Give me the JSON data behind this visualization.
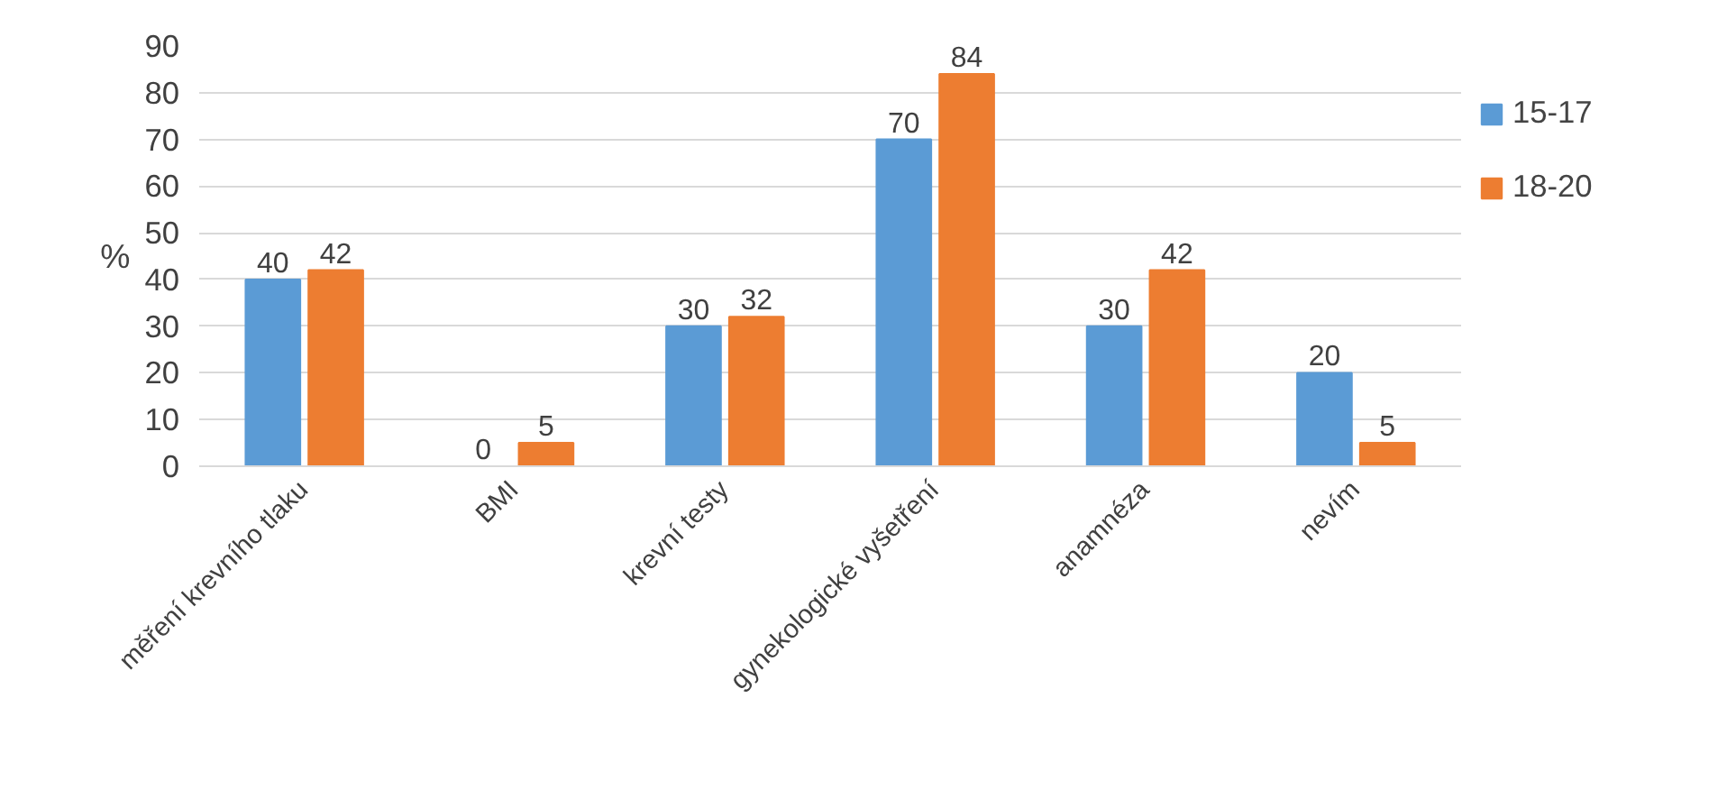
{
  "chart_data": {
    "type": "bar",
    "ylabel": "%",
    "categories": [
      "měření krevního tlaku",
      "BMI",
      "krevní testy",
      "gynekologické vyšetření",
      "anamnéza",
      "nevím"
    ],
    "series": [
      {
        "name": "15-17",
        "color": "#5b9bd5",
        "values": [
          40,
          0,
          30,
          70,
          30,
          20
        ]
      },
      {
        "name": "18-20",
        "color": "#ed7d31",
        "values": [
          42,
          5,
          32,
          84,
          42,
          5
        ]
      }
    ],
    "ylim": [
      0,
      90
    ],
    "yticks": [
      0,
      10,
      20,
      30,
      40,
      50,
      60,
      70,
      80,
      90
    ],
    "grid": "y",
    "legend": "right",
    "data_labels": true
  }
}
